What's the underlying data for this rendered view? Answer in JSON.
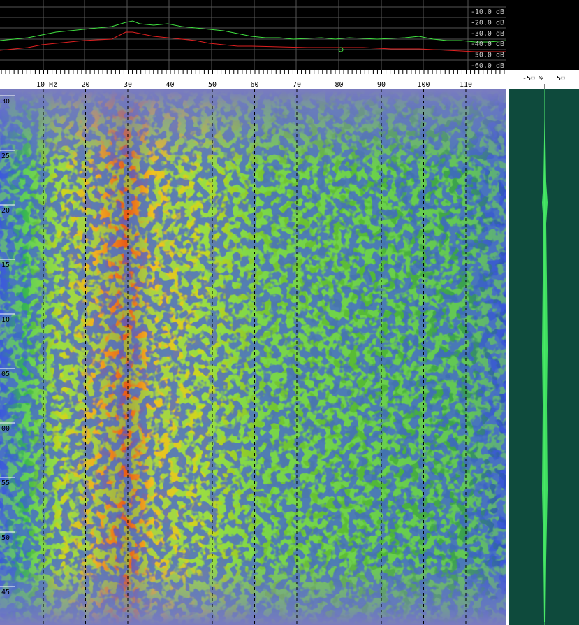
{
  "spectrum": {
    "db_labels": [
      "-10.0 dB",
      "-20.0 dB",
      "-30.0 dB",
      "-40.0 dB",
      "-50.0 dB",
      "-60.0 dB"
    ]
  },
  "frequency_axis": {
    "labels": [
      "10 Hz",
      "20",
      "30",
      "40",
      "50",
      "60",
      "70",
      "80",
      "90",
      "100",
      "110"
    ]
  },
  "time_axis": {
    "labels": [
      "30",
      "25",
      "20",
      "15",
      "10",
      "05",
      "00",
      "55",
      "50",
      "45"
    ]
  },
  "scope": {
    "labels": [
      "-50 %",
      "50"
    ]
  }
}
